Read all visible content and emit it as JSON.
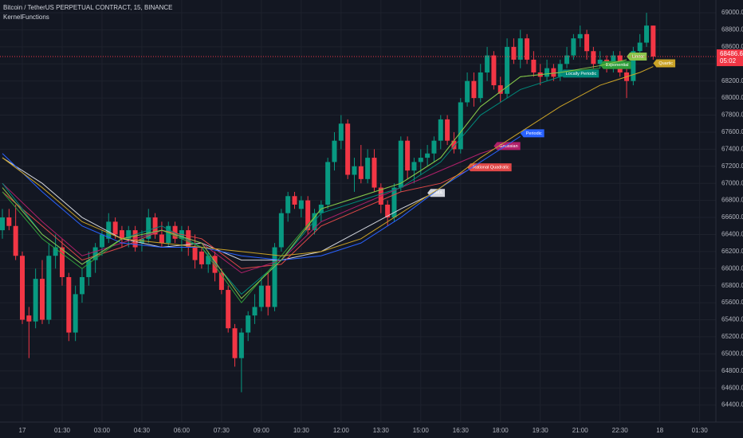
{
  "chart_data": {
    "type": "candlestick",
    "title": "Bitcoin / TetherUS PERPETUAL CONTRACT, 15, BINANCE",
    "subtitle": "KernelFunctions",
    "categories": [
      null,
      null,
      null,
      "17",
      null,
      null,
      null,
      null,
      null,
      "01:30",
      null,
      null,
      null,
      null,
      null,
      "03:00",
      null,
      null,
      null,
      null,
      null,
      "04:30",
      null,
      null,
      null,
      null,
      null,
      "06:00",
      null,
      null,
      null,
      null,
      null,
      "07:30",
      null,
      null,
      null,
      null,
      null,
      "09:00",
      null,
      null,
      null,
      null,
      null,
      "10:30",
      null,
      null,
      null,
      null,
      null,
      "12:00",
      null,
      null,
      null,
      null,
      null,
      "13:30",
      null,
      null,
      null,
      null,
      null,
      "15:00",
      null,
      null,
      null,
      null,
      null,
      "16:30",
      null,
      null,
      null,
      null,
      null,
      "18:00",
      null,
      null,
      null,
      null,
      null,
      "19:30",
      null,
      null,
      null,
      null,
      null,
      "21:00",
      null,
      null,
      null,
      null,
      null,
      "22:30",
      null,
      null,
      null,
      null,
      null,
      "18",
      null,
      null,
      null,
      null,
      null,
      "01:30",
      null,
      null
    ],
    "open": [
      66450,
      66600,
      66500,
      66150,
      65450,
      65380,
      65880,
      65400,
      66150,
      66250,
      65900,
      65250,
      65700,
      65900,
      66100,
      66250,
      66350,
      66550,
      66450,
      66350,
      66450,
      66300,
      66350,
      66600,
      66400,
      66300,
      66500,
      66350,
      66450,
      66250,
      66200,
      66050,
      66150,
      65950,
      65750,
      65300,
      64950,
      65250,
      65450,
      65550,
      65800,
      65550,
      66250,
      66650,
      66850,
      66700,
      66800,
      66450,
      66650,
      66750,
      67250,
      67500,
      67700,
      67100,
      67200,
      67050,
      67300,
      66950,
      66750,
      66600,
      66950,
      67500,
      67150,
      67250,
      67300,
      67350,
      67500,
      67750,
      67500,
      67400,
      67950,
      68200,
      68000,
      68300,
      68500,
      68150,
      68050,
      68600,
      68450,
      68700,
      68450,
      68300,
      68250,
      68350,
      68250,
      68400,
      68500,
      68700,
      68750,
      68550,
      68400,
      68450,
      68350,
      68500,
      68300,
      68200,
      68550,
      68650,
      68850,
      null,
      null,
      null,
      null,
      null,
      null,
      null,
      null,
      null
    ],
    "high": [
      66700,
      66700,
      66750,
      66200,
      65550,
      66000,
      66100,
      66300,
      66400,
      66350,
      65950,
      65800,
      66000,
      66200,
      66300,
      66450,
      66650,
      66600,
      66500,
      66500,
      66500,
      66450,
      66700,
      66650,
      66550,
      66550,
      66550,
      66500,
      66500,
      66400,
      66250,
      66200,
      66200,
      66000,
      65800,
      65350,
      65300,
      65500,
      65700,
      65900,
      65950,
      66300,
      66700,
      66900,
      66900,
      66850,
      66850,
      66700,
      66800,
      67300,
      67600,
      67800,
      67750,
      67300,
      67450,
      67400,
      67400,
      67000,
      66800,
      67000,
      67550,
      67550,
      67300,
      67400,
      67450,
      67550,
      67800,
      67800,
      67600,
      68000,
      68300,
      68300,
      68400,
      68600,
      68550,
      68250,
      68700,
      68700,
      68800,
      68750,
      68550,
      68400,
      68450,
      68400,
      68450,
      68600,
      68750,
      68850,
      68800,
      68600,
      68550,
      68500,
      68550,
      68550,
      68400,
      68600,
      68750,
      69000,
      68850,
      null,
      null,
      null,
      null,
      null,
      null,
      null,
      null,
      null
    ],
    "low": [
      66350,
      66450,
      66100,
      65350,
      64950,
      65300,
      65350,
      65350,
      66000,
      65800,
      65150,
      65150,
      65600,
      65800,
      65950,
      66150,
      66300,
      66350,
      66250,
      66250,
      66200,
      66200,
      66300,
      66350,
      66250,
      66250,
      66300,
      66200,
      66150,
      66000,
      66000,
      65950,
      65850,
      65700,
      65250,
      64850,
      64550,
      65150,
      65350,
      65500,
      65450,
      65500,
      66200,
      66550,
      66700,
      66600,
      66400,
      66400,
      66550,
      66700,
      67150,
      67400,
      67050,
      66900,
      67000,
      67000,
      66900,
      66650,
      66500,
      66550,
      66900,
      67050,
      67000,
      67100,
      67200,
      67250,
      67400,
      67450,
      67350,
      67350,
      67900,
      67900,
      67950,
      68200,
      68100,
      67950,
      68000,
      68400,
      68350,
      68400,
      68250,
      68150,
      68200,
      68200,
      68200,
      68350,
      68450,
      68600,
      68450,
      68350,
      68350,
      68300,
      68300,
      68250,
      68000,
      68150,
      68500,
      68600,
      68450,
      null,
      null,
      null,
      null,
      null,
      null,
      null,
      null,
      null
    ],
    "close": [
      66600,
      66500,
      66150,
      65400,
      65380,
      65880,
      65400,
      66150,
      66250,
      65900,
      65250,
      65700,
      65900,
      66100,
      66250,
      66400,
      66550,
      66400,
      66350,
      66450,
      66250,
      66350,
      66600,
      66400,
      66300,
      66500,
      66350,
      66450,
      66250,
      66100,
      66050,
      66150,
      65950,
      65750,
      65300,
      64950,
      65250,
      65450,
      65550,
      65800,
      65550,
      66250,
      66650,
      66850,
      66750,
      66800,
      66450,
      66650,
      66750,
      67250,
      67500,
      67700,
      67100,
      67200,
      67050,
      67300,
      66950,
      66750,
      66600,
      66950,
      67500,
      67150,
      67250,
      67300,
      67350,
      67500,
      67750,
      67500,
      67400,
      67950,
      68200,
      68000,
      68300,
      68500,
      68150,
      68050,
      68600,
      68450,
      68700,
      68450,
      68300,
      68250,
      68350,
      68250,
      68400,
      68500,
      68700,
      68750,
      68550,
      68400,
      68450,
      68350,
      68500,
      68300,
      68200,
      68550,
      68650,
      68850,
      68486.6,
      null,
      null,
      null,
      null,
      null,
      null,
      null,
      null,
      null
    ],
    "up_color": "#089981",
    "down_color": "#f23645",
    "overlays": [
      {
        "name": "SMA",
        "color": "#d1d4dc",
        "x": [
          0,
          6,
          12,
          18,
          24,
          30,
          36,
          42,
          48,
          54,
          60,
          64
        ],
        "values": [
          67300,
          67000,
          66600,
          66350,
          66250,
          66300,
          66100,
          66100,
          66200,
          66450,
          66700,
          66850
        ]
      },
      {
        "name": "Rational Quadratic",
        "color": "#e04848",
        "x": [
          0,
          6,
          12,
          18,
          24,
          30,
          36,
          42,
          48,
          54,
          60,
          66,
          70
        ],
        "values": [
          66900,
          66500,
          66100,
          66250,
          66450,
          66350,
          66000,
          66050,
          66500,
          66700,
          66900,
          67000,
          67150
        ]
      },
      {
        "name": "Gaussian",
        "color": "#b0206a",
        "x": [
          0,
          6,
          12,
          18,
          24,
          30,
          36,
          42,
          48,
          54,
          60,
          66,
          72,
          74
        ],
        "values": [
          67000,
          66550,
          66150,
          66300,
          66450,
          66300,
          65950,
          66100,
          66550,
          66750,
          66950,
          67150,
          67350,
          67400
        ]
      },
      {
        "name": "Periodic",
        "color": "#2962ff",
        "x": [
          0,
          6,
          12,
          18,
          24,
          30,
          36,
          42,
          48,
          54,
          60,
          66,
          72,
          78
        ],
        "values": [
          67350,
          66900,
          66500,
          66300,
          66250,
          66250,
          66150,
          66100,
          66150,
          66300,
          66600,
          66950,
          67250,
          67550
        ]
      },
      {
        "name": "Locally Periodic",
        "color": "#00897b",
        "x": [
          0,
          6,
          12,
          18,
          24,
          30,
          36,
          42,
          48,
          54,
          60,
          66,
          72,
          78,
          84
        ],
        "values": [
          67000,
          66400,
          66050,
          66350,
          66500,
          66250,
          65700,
          66100,
          66650,
          66800,
          66950,
          67250,
          67800,
          68100,
          68250
        ]
      },
      {
        "name": "Exponential",
        "color": "#2e9d3a",
        "x": [
          0,
          6,
          12,
          18,
          24,
          30,
          36,
          42,
          48,
          54,
          60,
          66,
          72,
          78,
          84,
          90
        ],
        "values": [
          66900,
          66350,
          66000,
          66350,
          66450,
          66250,
          65600,
          66150,
          66700,
          66850,
          67000,
          67300,
          67900,
          68250,
          68300,
          68350
        ]
      },
      {
        "name": "Linear",
        "color": "#8bc34a",
        "x": [
          0,
          6,
          12,
          18,
          24,
          30,
          36,
          42,
          48,
          54,
          60,
          66,
          72,
          78,
          84,
          90,
          94
        ],
        "values": [
          66950,
          66400,
          66050,
          66350,
          66450,
          66300,
          65650,
          66100,
          66700,
          66850,
          67000,
          67300,
          67900,
          68250,
          68300,
          68380,
          68450
        ]
      },
      {
        "name": "Quartic",
        "color": "#c9a227",
        "x": [
          0,
          6,
          12,
          18,
          24,
          30,
          36,
          42,
          48,
          54,
          60,
          66,
          72,
          78,
          84,
          90,
          96,
          98
        ],
        "values": [
          67300,
          66950,
          66550,
          66350,
          66300,
          66250,
          66200,
          66150,
          66200,
          66350,
          66650,
          66950,
          67300,
          67600,
          67900,
          68150,
          68300,
          68370
        ]
      }
    ],
    "last_price": 68486.6,
    "countdown": "05:02",
    "ylim": [
      64200,
      69150
    ],
    "yticks": [
      {
        "value": 64400,
        "label": "64400.0"
      },
      {
        "value": 64600,
        "label": "64600.0"
      },
      {
        "value": 64800,
        "label": "64800.0"
      },
      {
        "value": 65000,
        "label": "65000.0"
      },
      {
        "value": 65200,
        "label": "65200.0"
      },
      {
        "value": 65400,
        "label": "65400.0"
      },
      {
        "value": 65600,
        "label": "65600.0"
      },
      {
        "value": 65800,
        "label": "65800.0"
      },
      {
        "value": 66000,
        "label": "66000.0"
      },
      {
        "value": 66200,
        "label": "66200.0"
      },
      {
        "value": 66400,
        "label": "66400.0"
      },
      {
        "value": 66600,
        "label": "66600.0"
      },
      {
        "value": 66800,
        "label": "66800.0"
      },
      {
        "value": 67000,
        "label": "67000.0"
      },
      {
        "value": 67200,
        "label": "67200.0"
      },
      {
        "value": 67400,
        "label": "67400.0"
      },
      {
        "value": 67600,
        "label": "67600.0"
      },
      {
        "value": 67800,
        "label": "67800.0"
      },
      {
        "value": 68000,
        "label": "68000.0"
      },
      {
        "value": 68200,
        "label": "68200.0"
      },
      {
        "value": 68400,
        "label": "68400.0"
      },
      {
        "value": 68600,
        "label": "68600.0"
      },
      {
        "value": 68800,
        "label": "68800.0"
      },
      {
        "value": 69000,
        "label": "69000.0"
      }
    ],
    "grid": true
  }
}
